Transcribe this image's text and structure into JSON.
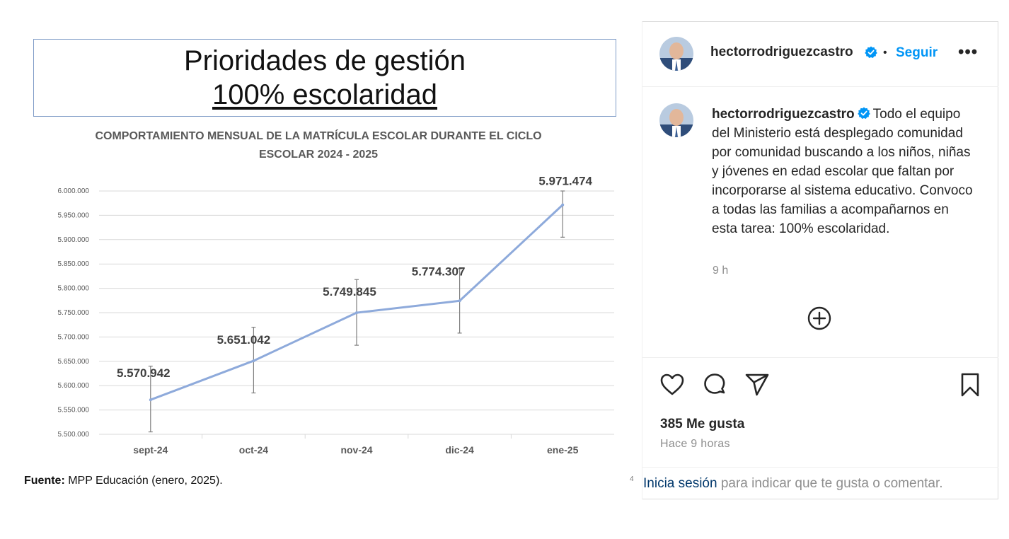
{
  "slide": {
    "title_line1": "Prioridades de gestión",
    "title_line2": "100% escolaridad",
    "chart_title_line1": "COMPORTAMIENTO MENSUAL DE LA MATRÍCULA ESCOLAR DURANTE EL CICLO",
    "chart_title_line2": "ESCOLAR 2024 - 2025",
    "source_label": "Fuente:",
    "source_text": " MPP Educación (enero, 2025).",
    "page_number": "4"
  },
  "chart_data": {
    "type": "line",
    "title": "COMPORTAMIENTO MENSUAL DE LA MATRÍCULA ESCOLAR DURANTE EL CICLO ESCOLAR 2024 - 2025",
    "categories": [
      "sept-24",
      "oct-24",
      "nov-24",
      "dic-24",
      "ene-25"
    ],
    "values": [
      5570942,
      5651042,
      5749845,
      5774307,
      5971474
    ],
    "data_labels": [
      "5.570.942",
      "5.651.042",
      "5.749.845",
      "5.774.307",
      "5.971.474"
    ],
    "error_low": [
      5505000,
      5585000,
      5683000,
      5708000,
      5905000
    ],
    "error_high": [
      5640000,
      5720000,
      5818000,
      5840000,
      6000000
    ],
    "ylim": [
      5500000,
      6000000
    ],
    "yticks": [
      "5.500.000",
      "5.550.000",
      "5.600.000",
      "5.650.000",
      "5.700.000",
      "5.750.000",
      "5.800.000",
      "5.850.000",
      "5.900.000",
      "5.950.000",
      "6.000.000"
    ],
    "grid": true,
    "line_color": "#8eaadb",
    "xlabel": "",
    "ylabel": ""
  },
  "post": {
    "username": "hectorrodriguezcastro",
    "dot": "•",
    "follow_label": "Seguir",
    "more_label": "•••",
    "caption_user": "hectorrodriguezcastro",
    "caption_text": "Todo el equipo del Ministerio está desplegado comunidad por comunidad buscando a los niños, niñas y jóvenes en edad escolar que faltan por incorporarse al sistema educativo. Convoco a todas las familias a acompañarnos en esta tarea: 100% escolaridad.",
    "caption_time": "9 h",
    "likes": "385 Me gusta",
    "posted_ago": "Hace 9 horas",
    "login_link": "Inicia sesión",
    "login_text": " para indicar que te gusta o comentar.",
    "icons": [
      "heart-icon",
      "comment-icon",
      "share-icon",
      "bookmark-icon",
      "add-circle-icon",
      "verified-icon",
      "more-icon"
    ],
    "colors": {
      "follow": "#0095f6",
      "verified": "#0095f6",
      "link": "#00376b"
    }
  }
}
